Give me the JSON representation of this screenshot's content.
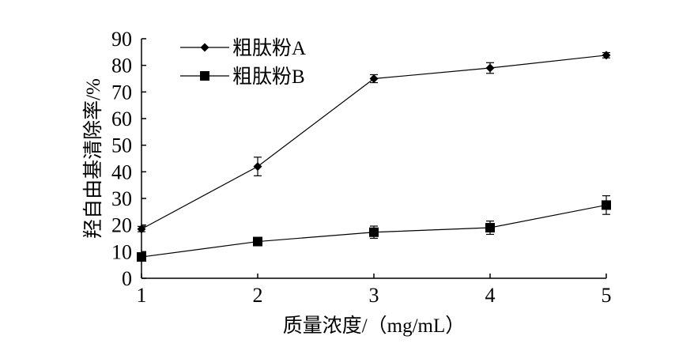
{
  "chart_data": {
    "type": "line",
    "xlabel": "质量浓度/（mg/mL）",
    "ylabel": "羟自由基清除率/%",
    "xlim": [
      1,
      5
    ],
    "ylim": [
      0,
      90
    ],
    "x": [
      1,
      2,
      3,
      4,
      5
    ],
    "xticks": [
      "1",
      "2",
      "3",
      "4",
      "5"
    ],
    "yticks": [
      "0",
      "10",
      "20",
      "30",
      "40",
      "50",
      "60",
      "70",
      "80",
      "90"
    ],
    "legend_position": "top-left",
    "grid": false,
    "series": [
      {
        "name": "粗肽粉A",
        "marker": "diamond",
        "color": "#000000",
        "values": [
          18.5,
          42.0,
          75.0,
          79.0,
          83.8
        ],
        "errors": [
          1.0,
          3.5,
          1.5,
          2.0,
          1.0
        ]
      },
      {
        "name": "粗肽粉B",
        "marker": "square",
        "color": "#000000",
        "values": [
          8.0,
          13.8,
          17.3,
          19.0,
          27.5
        ],
        "errors": [
          1.0,
          1.5,
          2.3,
          2.5,
          3.5
        ]
      }
    ]
  }
}
